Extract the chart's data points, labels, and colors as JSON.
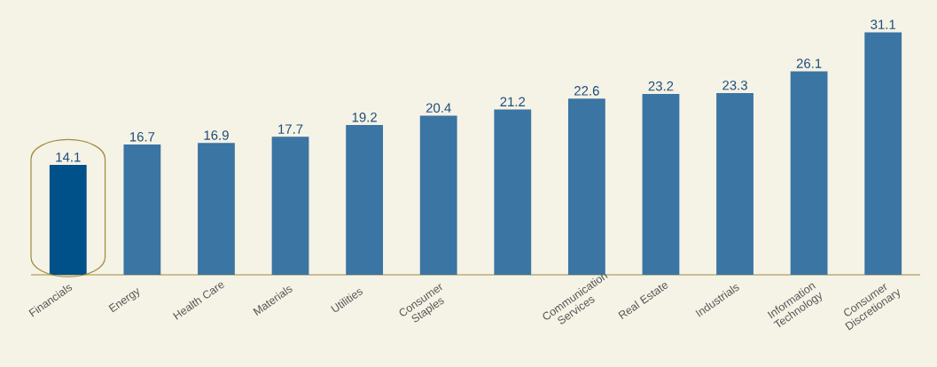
{
  "chart_data": {
    "type": "bar",
    "categories": [
      "Financials",
      "Energy",
      "Health Care",
      "Materials",
      "Utilities",
      "Consumer Staples",
      null,
      "Communication Services",
      "Real Estate",
      "Industrials",
      "Information Technology",
      "Consumer Discretionary"
    ],
    "values": [
      14.1,
      16.7,
      16.9,
      17.7,
      19.2,
      20.4,
      21.2,
      22.6,
      23.2,
      23.3,
      26.1,
      31.1
    ],
    "colors": [
      "#00508a",
      "#3a75a3",
      "#3a75a3",
      "#3a75a3",
      "#3a75a3",
      "#3a75a3",
      "#3a75a3",
      "#3a75a3",
      "#3a75a3",
      "#3a75a3",
      "#3a75a3",
      "#3a75a3"
    ],
    "data_labels": true
  }
}
